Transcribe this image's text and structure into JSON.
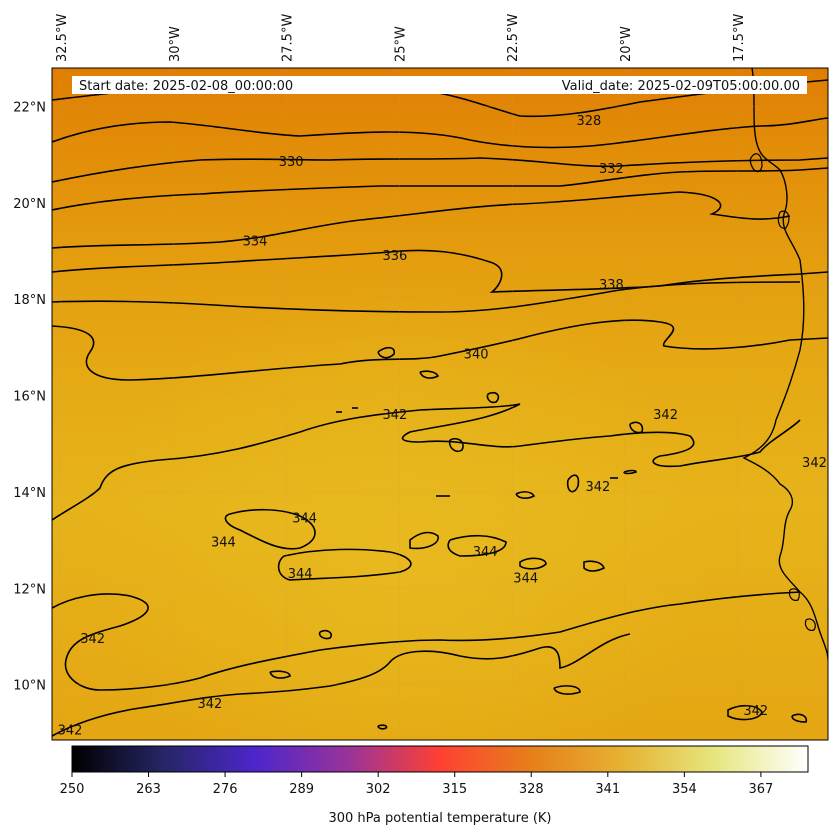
{
  "header": {
    "start_date": "Start date: 2025-02-08_00:00:00",
    "valid_date": "Valid_date: 2025-02-09T05:00:00.00"
  },
  "map": {
    "extent": {
      "lon_min": -32.7,
      "lon_max": -15.5,
      "lat_min": 8.85,
      "lat_max": 22.8
    },
    "background_color": "#e5a512",
    "lon_ticks": [
      {
        "lon": -32.5,
        "label": "32.5°W"
      },
      {
        "lon": -30,
        "label": "30°W"
      },
      {
        "lon": -27.5,
        "label": "27.5°W"
      },
      {
        "lon": -25,
        "label": "25°W"
      },
      {
        "lon": -22.5,
        "label": "22.5°W"
      },
      {
        "lon": -20,
        "label": "20°W"
      },
      {
        "lon": -17.5,
        "label": "17.5°W"
      }
    ],
    "lat_ticks": [
      {
        "lat": 22,
        "label": "22°N"
      },
      {
        "lat": 20,
        "label": "20°N"
      },
      {
        "lat": 18,
        "label": "18°N"
      },
      {
        "lat": 16,
        "label": "16°N"
      },
      {
        "lat": 14,
        "label": "14°N"
      },
      {
        "lat": 12,
        "label": "12°N"
      },
      {
        "lat": 10,
        "label": "10°N"
      }
    ],
    "contour_labels": [
      {
        "text": "328",
        "lon": -20.8,
        "lat": 21.7
      },
      {
        "text": "330",
        "lon": -27.4,
        "lat": 20.85
      },
      {
        "text": "332",
        "lon": -20.3,
        "lat": 20.7
      },
      {
        "text": "334",
        "lon": -28.2,
        "lat": 19.2
      },
      {
        "text": "336",
        "lon": -25.1,
        "lat": 18.9
      },
      {
        "text": "338",
        "lon": -20.3,
        "lat": 18.3
      },
      {
        "text": "340",
        "lon": -23.3,
        "lat": 16.85
      },
      {
        "text": "342",
        "lon": -25.1,
        "lat": 15.6
      },
      {
        "text": "342",
        "lon": -19.1,
        "lat": 15.6
      },
      {
        "text": "342",
        "lon": -20.6,
        "lat": 14.1
      },
      {
        "text": "342",
        "lon": -15.8,
        "lat": 14.6
      },
      {
        "text": "344",
        "lon": -27.1,
        "lat": 13.45
      },
      {
        "text": "344",
        "lon": -28.9,
        "lat": 12.95
      },
      {
        "text": "344",
        "lon": -23.1,
        "lat": 12.75
      },
      {
        "text": "344",
        "lon": -27.2,
        "lat": 12.3
      },
      {
        "text": "344",
        "lon": -22.2,
        "lat": 12.2
      },
      {
        "text": "342",
        "lon": -31.8,
        "lat": 10.95
      },
      {
        "text": "342",
        "lon": -29.2,
        "lat": 9.6
      },
      {
        "text": "342",
        "lon": -32.3,
        "lat": 9.05
      },
      {
        "text": "342",
        "lon": -17.1,
        "lat": 9.45
      }
    ]
  },
  "colorbar": {
    "min": 250,
    "max": 375,
    "ticks": [
      "250",
      "263",
      "276",
      "289",
      "302",
      "315",
      "328",
      "341",
      "354",
      "367"
    ],
    "label": "300 hPa potential temperature (K)",
    "colormap": "CMRmap"
  }
}
